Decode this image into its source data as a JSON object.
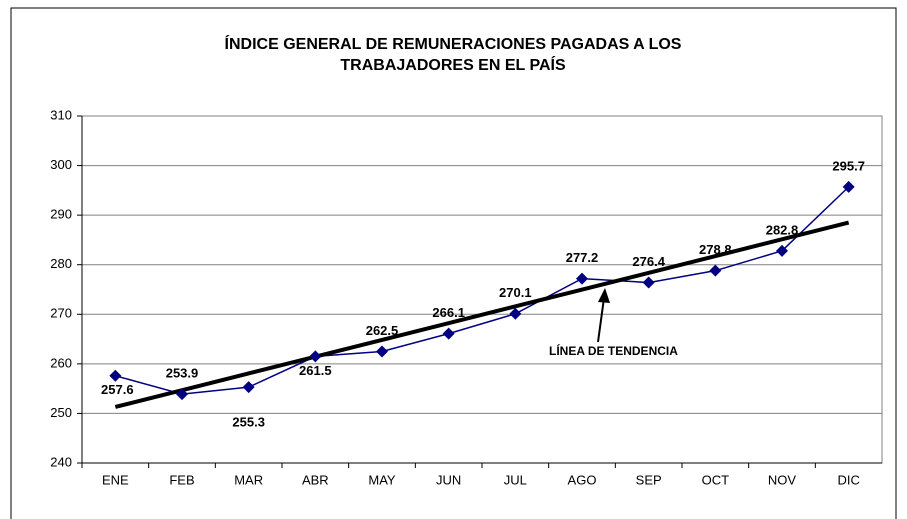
{
  "chart_data": {
    "type": "line",
    "title": [
      "ÍNDICE GENERAL DE REMUNERACIONES PAGADAS A LOS",
      "TRABAJADORES EN EL PAÍS"
    ],
    "categories": [
      "ENE",
      "FEB",
      "MAR",
      "ABR",
      "MAY",
      "JUN",
      "JUL",
      "AGO",
      "SEP",
      "OCT",
      "NOV",
      "DIC"
    ],
    "series": [
      {
        "color": "#000080",
        "values": [
          257.6,
          253.9,
          255.3,
          261.5,
          262.5,
          266.1,
          270.1,
          277.2,
          276.4,
          278.8,
          282.8,
          295.7
        ]
      }
    ],
    "trend": {
      "label": "LÍNEA DE TENDENCIA",
      "color": "#000000",
      "values": [
        251.3,
        288.5
      ]
    },
    "ylim": [
      240,
      310
    ],
    "yticks": [
      240,
      250,
      260,
      270,
      280,
      290,
      300,
      310
    ],
    "grid": true
  }
}
